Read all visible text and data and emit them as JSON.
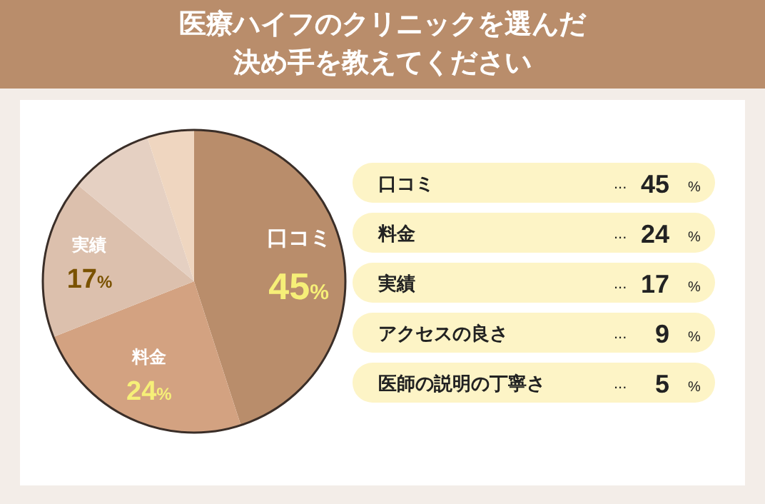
{
  "chart_data": [
    {
      "type": "pie",
      "title": "医療ハイフのクリニックを選んだ決め手を教えてください",
      "categories": [
        "口コミ",
        "料金",
        "実績",
        null,
        null
      ],
      "values": [
        45,
        24,
        17,
        9,
        5
      ],
      "colors": [
        "#b98d6b",
        "#d3a281",
        "#dcc0ad",
        "#e5d0c2",
        "#efd6c0"
      ],
      "value_labels": [
        "45%",
        "24%",
        "17%",
        null,
        null
      ]
    },
    {
      "type": "other",
      "categories": [
        "口コミ",
        "料金",
        "実績",
        "アクセスの良さ",
        "医師の説明の丁寧さ"
      ],
      "values": [
        45,
        24,
        17,
        9,
        5
      ],
      "data_labels": true,
      "annotations": [
        "...",
        "%"
      ]
    }
  ]
}
